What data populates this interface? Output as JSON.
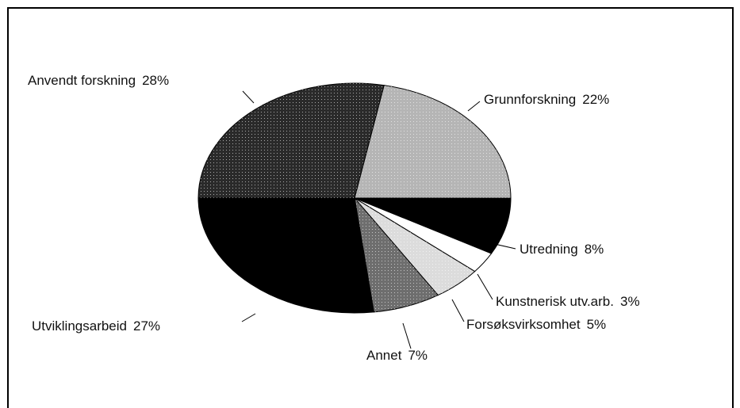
{
  "chart_data": {
    "type": "pie",
    "categories": [
      "Grunnforskning",
      "Utredning",
      "Kunstnerisk utv.arb.",
      "Forsøksvirksomhet",
      "Annet",
      "Utviklingsarbeid",
      "Anvendt forskning"
    ],
    "values": [
      22,
      8,
      3,
      5,
      7,
      27,
      28
    ],
    "value_labels": [
      "22%",
      "8%",
      "3%",
      "5%",
      "7%",
      "27%",
      "28%"
    ],
    "colors": [
      "#b5b5b5",
      "#000000",
      "#ffffff",
      "#dcdcdc",
      "#6e6e6e",
      "#000000",
      "#2a2a2a"
    ]
  }
}
